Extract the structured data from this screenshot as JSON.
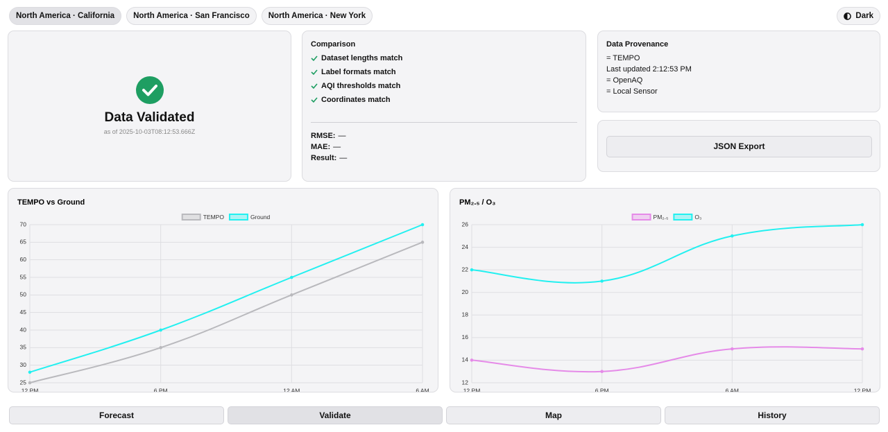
{
  "tabs": [
    "North America · California",
    "North America · San Francisco",
    "North America · New York"
  ],
  "theme_button": "Dark",
  "status": {
    "title": "Data Validated",
    "timestamp": "as of 2025-10-03T08:12:53.666Z"
  },
  "comparison": {
    "title": "Comparison",
    "checks": [
      "Dataset lengths match",
      "Label formats match",
      "AQI thresholds match",
      "Coordinates match"
    ],
    "metrics": [
      {
        "label": "RMSE:",
        "value": "—"
      },
      {
        "label": "MAE:",
        "value": "—"
      },
      {
        "label": "Result:",
        "value": "—"
      }
    ]
  },
  "provenance": {
    "title": "Data Provenance",
    "lines": [
      "= TEMPO",
      "Last updated 2:12:53 PM",
      "= OpenAQ",
      "= Local Sensor"
    ]
  },
  "export_button": "JSON Export",
  "chart_data": [
    {
      "type": "line",
      "title": "TEMPO vs Ground",
      "categories": [
        "12 PM",
        "6 PM",
        "12 AM",
        "6 AM"
      ],
      "series": [
        {
          "name": "TEMPO",
          "color": "#b9b9bd",
          "values": [
            25,
            35,
            50,
            65
          ]
        },
        {
          "name": "Ground",
          "color": "#22f0f0",
          "values": [
            28,
            40,
            55,
            70
          ]
        }
      ],
      "ylim": [
        25,
        70
      ],
      "yticks": [
        25,
        30,
        35,
        40,
        45,
        50,
        55,
        60,
        65,
        70
      ],
      "grid": true
    },
    {
      "type": "line",
      "title": "PM₂.₅ / O₃",
      "categories": [
        "12 PM",
        "6 PM",
        "6 AM",
        "12 PM"
      ],
      "series": [
        {
          "name": "PM₂.₅",
          "color": "#e58ae8",
          "values": [
            14,
            13,
            15,
            15
          ]
        },
        {
          "name": "O₃",
          "color": "#22f0f0",
          "values": [
            22,
            21,
            25,
            26
          ]
        }
      ],
      "ylim": [
        12,
        26
      ],
      "yticks": [
        12,
        14,
        16,
        18,
        20,
        22,
        24,
        26
      ],
      "grid": true
    }
  ],
  "nav": [
    "Forecast",
    "Validate",
    "Map",
    "History"
  ]
}
